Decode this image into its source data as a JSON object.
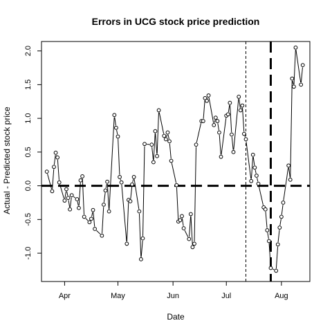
{
  "chart_data": {
    "type": "line",
    "title": "Errors in UCG stock price prediction",
    "xlabel": "Date",
    "ylabel": "Actual - Predicted stock price",
    "x_tick_labels": [
      {
        "date": "2013-04-01",
        "label": "Apr"
      },
      {
        "date": "2013-05-01",
        "label": "May"
      },
      {
        "date": "2013-06-01",
        "label": "Jun"
      },
      {
        "date": "2013-07-01",
        "label": "Jul"
      },
      {
        "date": "2013-08-01",
        "label": "Aug"
      }
    ],
    "y_ticks": [
      -1.0,
      -0.5,
      0.0,
      0.5,
      1.0,
      1.5,
      2.0
    ],
    "y_tick_labels": [
      "-1.0",
      "-0.5",
      "0.0",
      "0.5",
      "1.0",
      "1.5",
      "2.0"
    ],
    "xlim": [
      "2013-03-19",
      "2013-08-17"
    ],
    "ylim": [
      -1.42,
      2.14
    ],
    "horizontal_reference": {
      "y": 0.0,
      "style": "thick-dashed"
    },
    "vertical_references": [
      {
        "date": "2013-07-12",
        "style": "thin-dashed"
      },
      {
        "date": "2013-07-26",
        "style": "thick-dashed"
      }
    ],
    "series": [
      {
        "points": [
          {
            "x": "2013-03-22",
            "y": 0.21
          },
          {
            "x": "2013-03-25",
            "y": -0.08
          },
          {
            "x": "2013-03-26",
            "y": 0.28
          },
          {
            "x": "2013-03-27",
            "y": 0.49
          },
          {
            "x": "2013-03-28",
            "y": 0.42
          },
          {
            "x": "2013-03-29",
            "y": 0.05
          },
          {
            "x": "2013-04-01",
            "y": -0.22
          },
          {
            "x": "2013-04-02",
            "y": -0.05
          },
          {
            "x": "2013-04-03",
            "y": -0.18
          },
          {
            "x": "2013-04-04",
            "y": -0.35
          },
          {
            "x": "2013-04-05",
            "y": -0.14
          },
          {
            "x": "2013-04-08",
            "y": -0.2
          },
          {
            "x": "2013-04-09",
            "y": -0.33
          },
          {
            "x": "2013-04-10",
            "y": 0.08
          },
          {
            "x": "2013-04-11",
            "y": 0.14
          },
          {
            "x": "2013-04-12",
            "y": -0.46
          },
          {
            "x": "2013-04-15",
            "y": -0.54
          },
          {
            "x": "2013-04-16",
            "y": -0.49
          },
          {
            "x": "2013-04-17",
            "y": -0.36
          },
          {
            "x": "2013-04-18",
            "y": -0.64
          },
          {
            "x": "2013-04-22",
            "y": -0.74
          },
          {
            "x": "2013-04-23",
            "y": -0.28
          },
          {
            "x": "2013-04-24",
            "y": -0.07
          },
          {
            "x": "2013-04-25",
            "y": 0.06
          },
          {
            "x": "2013-04-26",
            "y": -0.38
          },
          {
            "x": "2013-04-29",
            "y": 1.05
          },
          {
            "x": "2013-04-30",
            "y": 0.86
          },
          {
            "x": "2013-05-01",
            "y": 0.73
          },
          {
            "x": "2013-05-02",
            "y": 0.13
          },
          {
            "x": "2013-05-03",
            "y": 0.05
          },
          {
            "x": "2013-05-06",
            "y": -0.86
          },
          {
            "x": "2013-05-07",
            "y": -0.21
          },
          {
            "x": "2013-05-08",
            "y": -0.23
          },
          {
            "x": "2013-05-09",
            "y": 0.02
          },
          {
            "x": "2013-05-10",
            "y": 0.13
          },
          {
            "x": "2013-05-13",
            "y": -0.38
          },
          {
            "x": "2013-05-14",
            "y": -1.09
          },
          {
            "x": "2013-05-15",
            "y": -0.78
          },
          {
            "x": "2013-05-16",
            "y": 0.62
          },
          {
            "x": "2013-05-20",
            "y": 0.61
          },
          {
            "x": "2013-05-21",
            "y": 0.35
          },
          {
            "x": "2013-05-22",
            "y": 0.81
          },
          {
            "x": "2013-05-23",
            "y": 0.44
          },
          {
            "x": "2013-05-24",
            "y": 1.12
          },
          {
            "x": "2013-05-27",
            "y": 0.74
          },
          {
            "x": "2013-05-28",
            "y": 0.69
          },
          {
            "x": "2013-05-29",
            "y": 0.79
          },
          {
            "x": "2013-05-30",
            "y": 0.66
          },
          {
            "x": "2013-05-31",
            "y": 0.37
          },
          {
            "x": "2013-06-03",
            "y": 0.01
          },
          {
            "x": "2013-06-04",
            "y": -0.53
          },
          {
            "x": "2013-06-05",
            "y": -0.51
          },
          {
            "x": "2013-06-06",
            "y": -0.45
          },
          {
            "x": "2013-06-07",
            "y": -0.63
          },
          {
            "x": "2013-06-10",
            "y": -0.79
          },
          {
            "x": "2013-06-11",
            "y": -0.42
          },
          {
            "x": "2013-06-12",
            "y": -0.91
          },
          {
            "x": "2013-06-13",
            "y": -0.86
          },
          {
            "x": "2013-06-14",
            "y": 0.61
          },
          {
            "x": "2013-06-17",
            "y": 0.96
          },
          {
            "x": "2013-06-18",
            "y": 0.96
          },
          {
            "x": "2013-06-19",
            "y": 1.3
          },
          {
            "x": "2013-06-20",
            "y": 1.26
          },
          {
            "x": "2013-06-21",
            "y": 1.34
          },
          {
            "x": "2013-06-24",
            "y": 0.9
          },
          {
            "x": "2013-06-25",
            "y": 1.01
          },
          {
            "x": "2013-06-26",
            "y": 0.96
          },
          {
            "x": "2013-06-27",
            "y": 0.79
          },
          {
            "x": "2013-06-28",
            "y": 0.43
          },
          {
            "x": "2013-07-01",
            "y": 1.04
          },
          {
            "x": "2013-07-02",
            "y": 1.06
          },
          {
            "x": "2013-07-03",
            "y": 1.23
          },
          {
            "x": "2013-07-04",
            "y": 0.76
          },
          {
            "x": "2013-07-05",
            "y": 0.5
          },
          {
            "x": "2013-07-08",
            "y": 1.32
          },
          {
            "x": "2013-07-09",
            "y": 1.12
          },
          {
            "x": "2013-07-10",
            "y": 1.19
          },
          {
            "x": "2013-07-11",
            "y": 0.77
          },
          {
            "x": "2013-07-12",
            "y": 0.69
          },
          {
            "x": "2013-07-15",
            "y": 0.07
          },
          {
            "x": "2013-07-16",
            "y": 0.46
          },
          {
            "x": "2013-07-17",
            "y": 0.27
          },
          {
            "x": "2013-07-18",
            "y": 0.15
          },
          {
            "x": "2013-07-19",
            "y": 0.03
          },
          {
            "x": "2013-07-22",
            "y": -0.32
          },
          {
            "x": "2013-07-23",
            "y": -0.35
          },
          {
            "x": "2013-07-24",
            "y": -0.66
          },
          {
            "x": "2013-07-25",
            "y": -0.82
          },
          {
            "x": "2013-07-26",
            "y": -1.22
          },
          {
            "x": "2013-07-29",
            "y": -1.26
          },
          {
            "x": "2013-07-30",
            "y": -0.87
          },
          {
            "x": "2013-07-31",
            "y": -0.62
          },
          {
            "x": "2013-08-01",
            "y": -0.46
          },
          {
            "x": "2013-08-02",
            "y": -0.25
          },
          {
            "x": "2013-08-05",
            "y": 0.3
          },
          {
            "x": "2013-08-06",
            "y": 0.09
          },
          {
            "x": "2013-08-07",
            "y": 1.59
          },
          {
            "x": "2013-08-08",
            "y": 1.47
          },
          {
            "x": "2013-08-09",
            "y": 2.05
          },
          {
            "x": "2013-08-12",
            "y": 1.5
          },
          {
            "x": "2013-08-13",
            "y": 1.79
          }
        ]
      }
    ]
  }
}
